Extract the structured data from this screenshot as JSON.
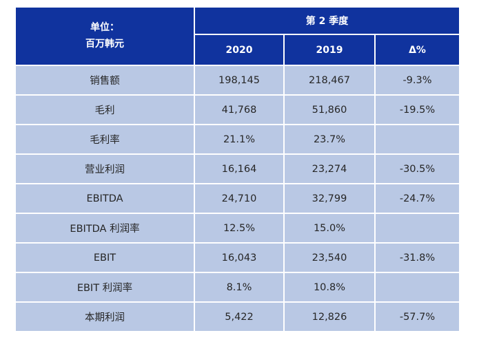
{
  "colors": {
    "header_bg": "#10339E",
    "row_bg": "#B9C8E4",
    "header_text": "#FFFFFF",
    "cell_text": "#262626",
    "page_bg": "#FFFFFF"
  },
  "chart_data": {
    "type": "table",
    "title": "第 2 季度",
    "unit_line1": "单位：",
    "unit_line2": "百万韩元",
    "columns": [
      "2020",
      "2019",
      "Δ%"
    ],
    "rows": [
      {
        "label": "销售额",
        "values": [
          "198,145",
          "218,467",
          "-9.3%"
        ]
      },
      {
        "label": "毛利",
        "values": [
          "41,768",
          "51,860",
          "-19.5%"
        ]
      },
      {
        "label": "毛利率",
        "values": [
          "21.1%",
          "23.7%",
          ""
        ]
      },
      {
        "label": "营业利润",
        "values": [
          "16,164",
          "23,274",
          "-30.5%"
        ]
      },
      {
        "label": "EBITDA",
        "values": [
          "24,710",
          "32,799",
          "-24.7%"
        ]
      },
      {
        "label": "EBITDA 利润率",
        "values": [
          "12.5%",
          "15.0%",
          ""
        ]
      },
      {
        "label": "EBIT",
        "values": [
          "16,043",
          "23,540",
          "-31.8%"
        ]
      },
      {
        "label": "EBIT 利润率",
        "values": [
          "8.1%",
          "10.8%",
          ""
        ]
      },
      {
        "label": "本期利润",
        "values": [
          "5,422",
          "12,826",
          "-57.7%"
        ]
      }
    ]
  }
}
